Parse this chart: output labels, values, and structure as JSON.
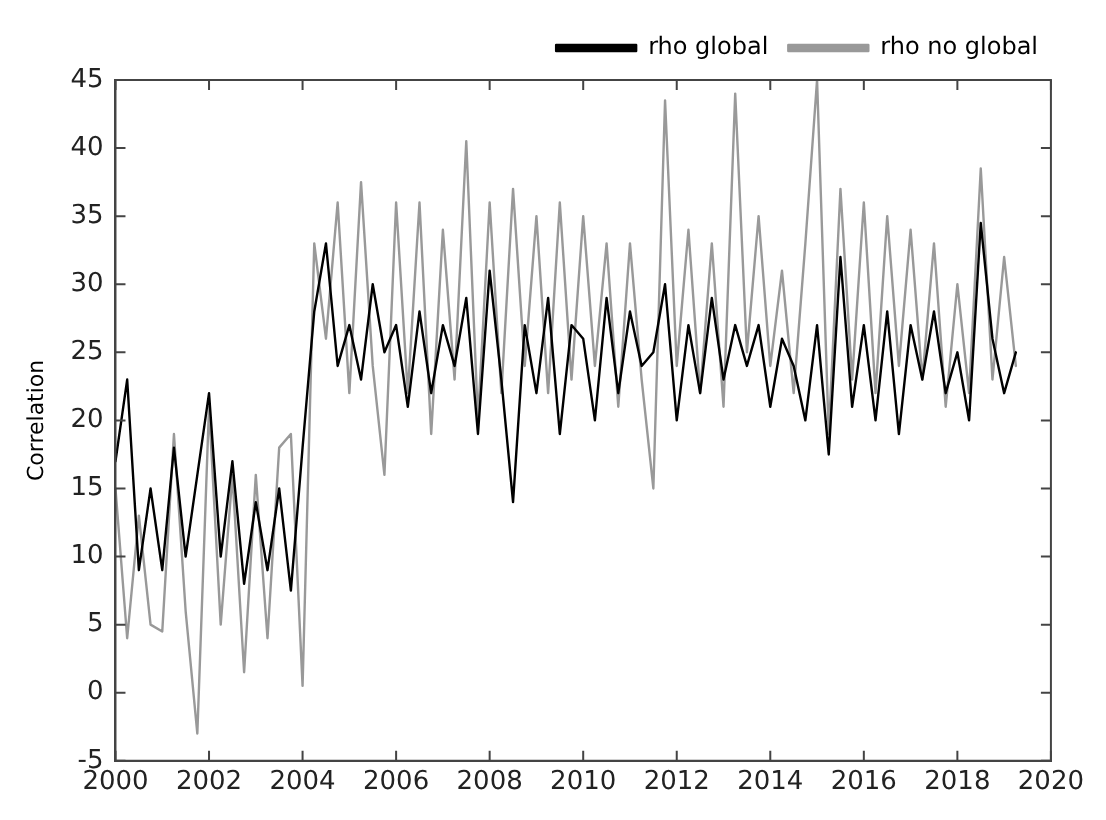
{
  "chart_data": {
    "type": "line",
    "ylabel": "Correlation",
    "x": [
      2000,
      2000.25,
      2000.5,
      2000.75,
      2001,
      2001.25,
      2001.5,
      2001.75,
      2002,
      2002.25,
      2002.5,
      2002.75,
      2003,
      2003.25,
      2003.5,
      2003.75,
      2004,
      2004.25,
      2004.5,
      2004.75,
      2005,
      2005.25,
      2005.5,
      2005.75,
      2006,
      2006.25,
      2006.5,
      2006.75,
      2007,
      2007.25,
      2007.5,
      2007.75,
      2008,
      2008.25,
      2008.5,
      2008.75,
      2009,
      2009.25,
      2009.5,
      2009.75,
      2010,
      2010.25,
      2010.5,
      2010.75,
      2011,
      2011.25,
      2011.5,
      2011.75,
      2012,
      2012.25,
      2012.5,
      2012.75,
      2013,
      2013.25,
      2013.5,
      2013.75,
      2014,
      2014.25,
      2014.5,
      2014.75,
      2015,
      2015.25,
      2015.5,
      2015.75,
      2016,
      2016.25,
      2016.5,
      2016.75,
      2017,
      2017.25,
      2017.5,
      2017.75,
      2018,
      2018.25,
      2018.5,
      2018.75,
      2019,
      2019.25
    ],
    "series": [
      {
        "name": "rho global",
        "color": "#000000",
        "values": [
          17,
          23,
          9,
          15,
          9,
          18,
          10,
          16,
          22,
          10,
          17,
          8,
          14,
          9,
          15,
          7.5,
          18,
          28,
          33,
          24,
          27,
          23,
          30,
          25,
          27,
          21,
          28,
          22,
          27,
          24,
          29,
          19,
          31,
          23,
          14,
          27,
          22,
          29,
          19,
          27,
          26,
          20,
          29,
          22,
          28,
          24,
          25,
          30,
          20,
          27,
          22,
          29,
          23,
          27,
          24,
          27,
          21,
          26,
          24,
          20,
          27,
          17.5,
          32,
          21,
          27,
          20,
          28,
          19,
          27,
          23,
          28,
          22,
          25,
          20,
          34.5,
          26,
          22,
          25
        ]
      },
      {
        "name": "rho no global",
        "color": "#999999",
        "values": [
          15,
          4,
          13,
          5,
          4.5,
          19,
          6,
          -3,
          21,
          5,
          16,
          1.5,
          16,
          4,
          18,
          19,
          0.5,
          33,
          26,
          36,
          22,
          37.5,
          24,
          16,
          36,
          22,
          36,
          19,
          34,
          23,
          40.5,
          20,
          36,
          22,
          37,
          24,
          35,
          22,
          36,
          23,
          35,
          24,
          33,
          21,
          33,
          23,
          15,
          43.5,
          24,
          34,
          22,
          33,
          21,
          44,
          25,
          35,
          24,
          31,
          22,
          33,
          45,
          19,
          37,
          23,
          36,
          22,
          35,
          24,
          34,
          23,
          33,
          21,
          30,
          22,
          38.5,
          23,
          32,
          24
        ]
      }
    ],
    "xlim": [
      2000,
      2020
    ],
    "xticks": [
      2000,
      2002,
      2004,
      2006,
      2008,
      2010,
      2012,
      2014,
      2016,
      2018,
      2020
    ],
    "ylim": [
      -5,
      45
    ],
    "yticks": [
      -5,
      0,
      5,
      10,
      15,
      20,
      25,
      30,
      35,
      40,
      45
    ],
    "grid": false,
    "legend": "top right",
    "marker": "none",
    "line_style": "solid"
  }
}
